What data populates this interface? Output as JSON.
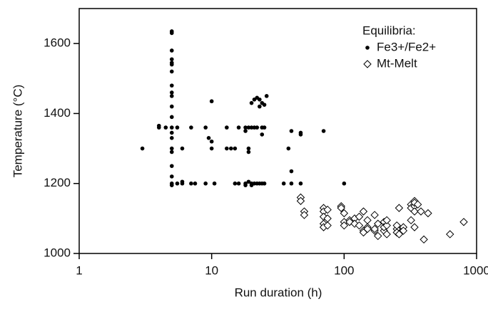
{
  "chart_data": {
    "type": "scatter",
    "xlabel": "Run duration (h)",
    "ylabel": "Temperature (°C)",
    "xscale": "log",
    "xlim": [
      1,
      1000
    ],
    "xticks": [
      1,
      10,
      100,
      1000
    ],
    "ylim": [
      1000,
      1700
    ],
    "yticks": [
      1000,
      1200,
      1400,
      1600
    ],
    "legend_title": "Equilibria:",
    "legend": "upper right",
    "series": [
      {
        "name": "Fe3+/Fe2+",
        "color": "#000000",
        "marker": "circle",
        "x": [
          5,
          5,
          5,
          5,
          5,
          5,
          5,
          5,
          5,
          5,
          5,
          5,
          5,
          5,
          5,
          5,
          5,
          5,
          5,
          5,
          5,
          3,
          4,
          4,
          4.5,
          5.5,
          5.5,
          6,
          6,
          6,
          7,
          7,
          7.5,
          9,
          9,
          9.5,
          10,
          10,
          10,
          10.5,
          13,
          13,
          14,
          15,
          15,
          16,
          16,
          18,
          18,
          18,
          18,
          19,
          19,
          19,
          19,
          20,
          20,
          20,
          20,
          21,
          21,
          21,
          22,
          22,
          22,
          23,
          23,
          23,
          24,
          24,
          24,
          24,
          25,
          25,
          25,
          26,
          35,
          38,
          40,
          40,
          40,
          47,
          47,
          47,
          70,
          100
        ],
        "y": [
          1635,
          1630,
          1580,
          1555,
          1545,
          1540,
          1520,
          1480,
          1460,
          1450,
          1420,
          1390,
          1360,
          1345,
          1330,
          1300,
          1290,
          1250,
          1220,
          1200,
          1195,
          1300,
          1365,
          1360,
          1360,
          1360,
          1200,
          1200,
          1205,
          1300,
          1360,
          1200,
          1200,
          1360,
          1200,
          1330,
          1320,
          1435,
          1300,
          1200,
          1360,
          1300,
          1300,
          1300,
          1200,
          1200,
          1360,
          1360,
          1350,
          1200,
          1195,
          1290,
          1300,
          1360,
          1205,
          1200,
          1430,
          1360,
          1195,
          1440,
          1200,
          1360,
          1445,
          1200,
          1360,
          1420,
          1200,
          1440,
          1430,
          1360,
          1200,
          1340,
          1425,
          1360,
          1200,
          1450,
          1200,
          1300,
          1350,
          1235,
          1200,
          1340,
          1345,
          1200,
          1350,
          1200
        ]
      },
      {
        "name": "Mt-Melt",
        "color": "#000000",
        "marker": "diamond",
        "x": [
          47,
          47,
          50,
          50,
          70,
          70,
          70,
          70,
          70,
          75,
          75,
          75,
          95,
          95,
          100,
          100,
          100,
          110,
          110,
          120,
          120,
          130,
          130,
          140,
          140,
          140,
          150,
          150,
          150,
          170,
          170,
          170,
          180,
          180,
          200,
          200,
          200,
          210,
          210,
          210,
          250,
          250,
          250,
          260,
          260,
          280,
          280,
          320,
          320,
          320,
          340,
          340,
          340,
          340,
          340,
          360,
          380,
          400,
          430,
          630,
          800
        ],
        "y": [
          1160,
          1150,
          1120,
          1110,
          1130,
          1120,
          1105,
          1085,
          1075,
          1125,
          1100,
          1080,
          1135,
          1130,
          1115,
          1090,
          1080,
          1095,
          1090,
          1100,
          1085,
          1105,
          1080,
          1120,
          1065,
          1060,
          1095,
          1075,
          1070,
          1110,
          1065,
          1070,
          1085,
          1050,
          1090,
          1065,
          1075,
          1080,
          1055,
          1095,
          1070,
          1060,
          1080,
          1130,
          1055,
          1075,
          1065,
          1140,
          1130,
          1095,
          1150,
          1135,
          1145,
          1120,
          1075,
          1140,
          1120,
          1040,
          1115,
          1055,
          1090
        ]
      }
    ]
  }
}
